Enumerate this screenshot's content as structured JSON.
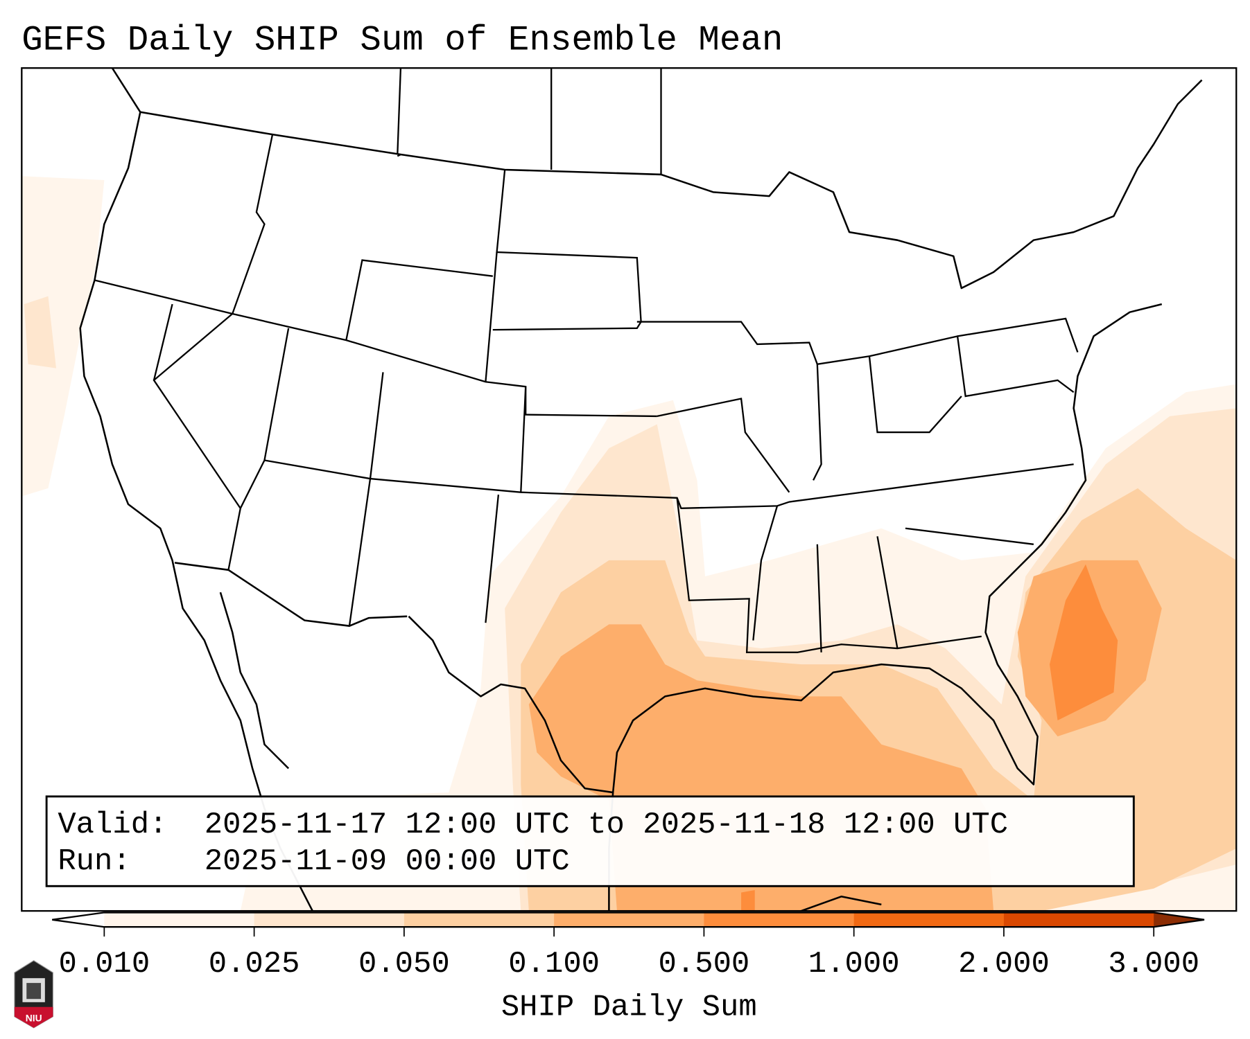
{
  "title": "GEFS Daily SHIP Sum of Ensemble Mean",
  "info_box": {
    "valid_label": "Valid:",
    "valid_value": "2025-11-17 12:00 UTC to 2025-11-18 12:00 UTC",
    "run_label": "Run:",
    "run_value": "2025-11-09 00:00 UTC"
  },
  "colorbar": {
    "label": "SHIP Daily Sum",
    "ticks": [
      "0.010",
      "0.025",
      "0.050",
      "0.100",
      "0.500",
      "1.000",
      "2.000",
      "3.000"
    ],
    "colors": [
      "#fff5eb",
      "#fee6ce",
      "#fdd0a2",
      "#fdae6b",
      "#fd8d3c",
      "#f16913",
      "#d94801"
    ],
    "under_color": "#ffffff",
    "over_color": "#8c2d04"
  },
  "logo": {
    "text": "NIU"
  }
}
